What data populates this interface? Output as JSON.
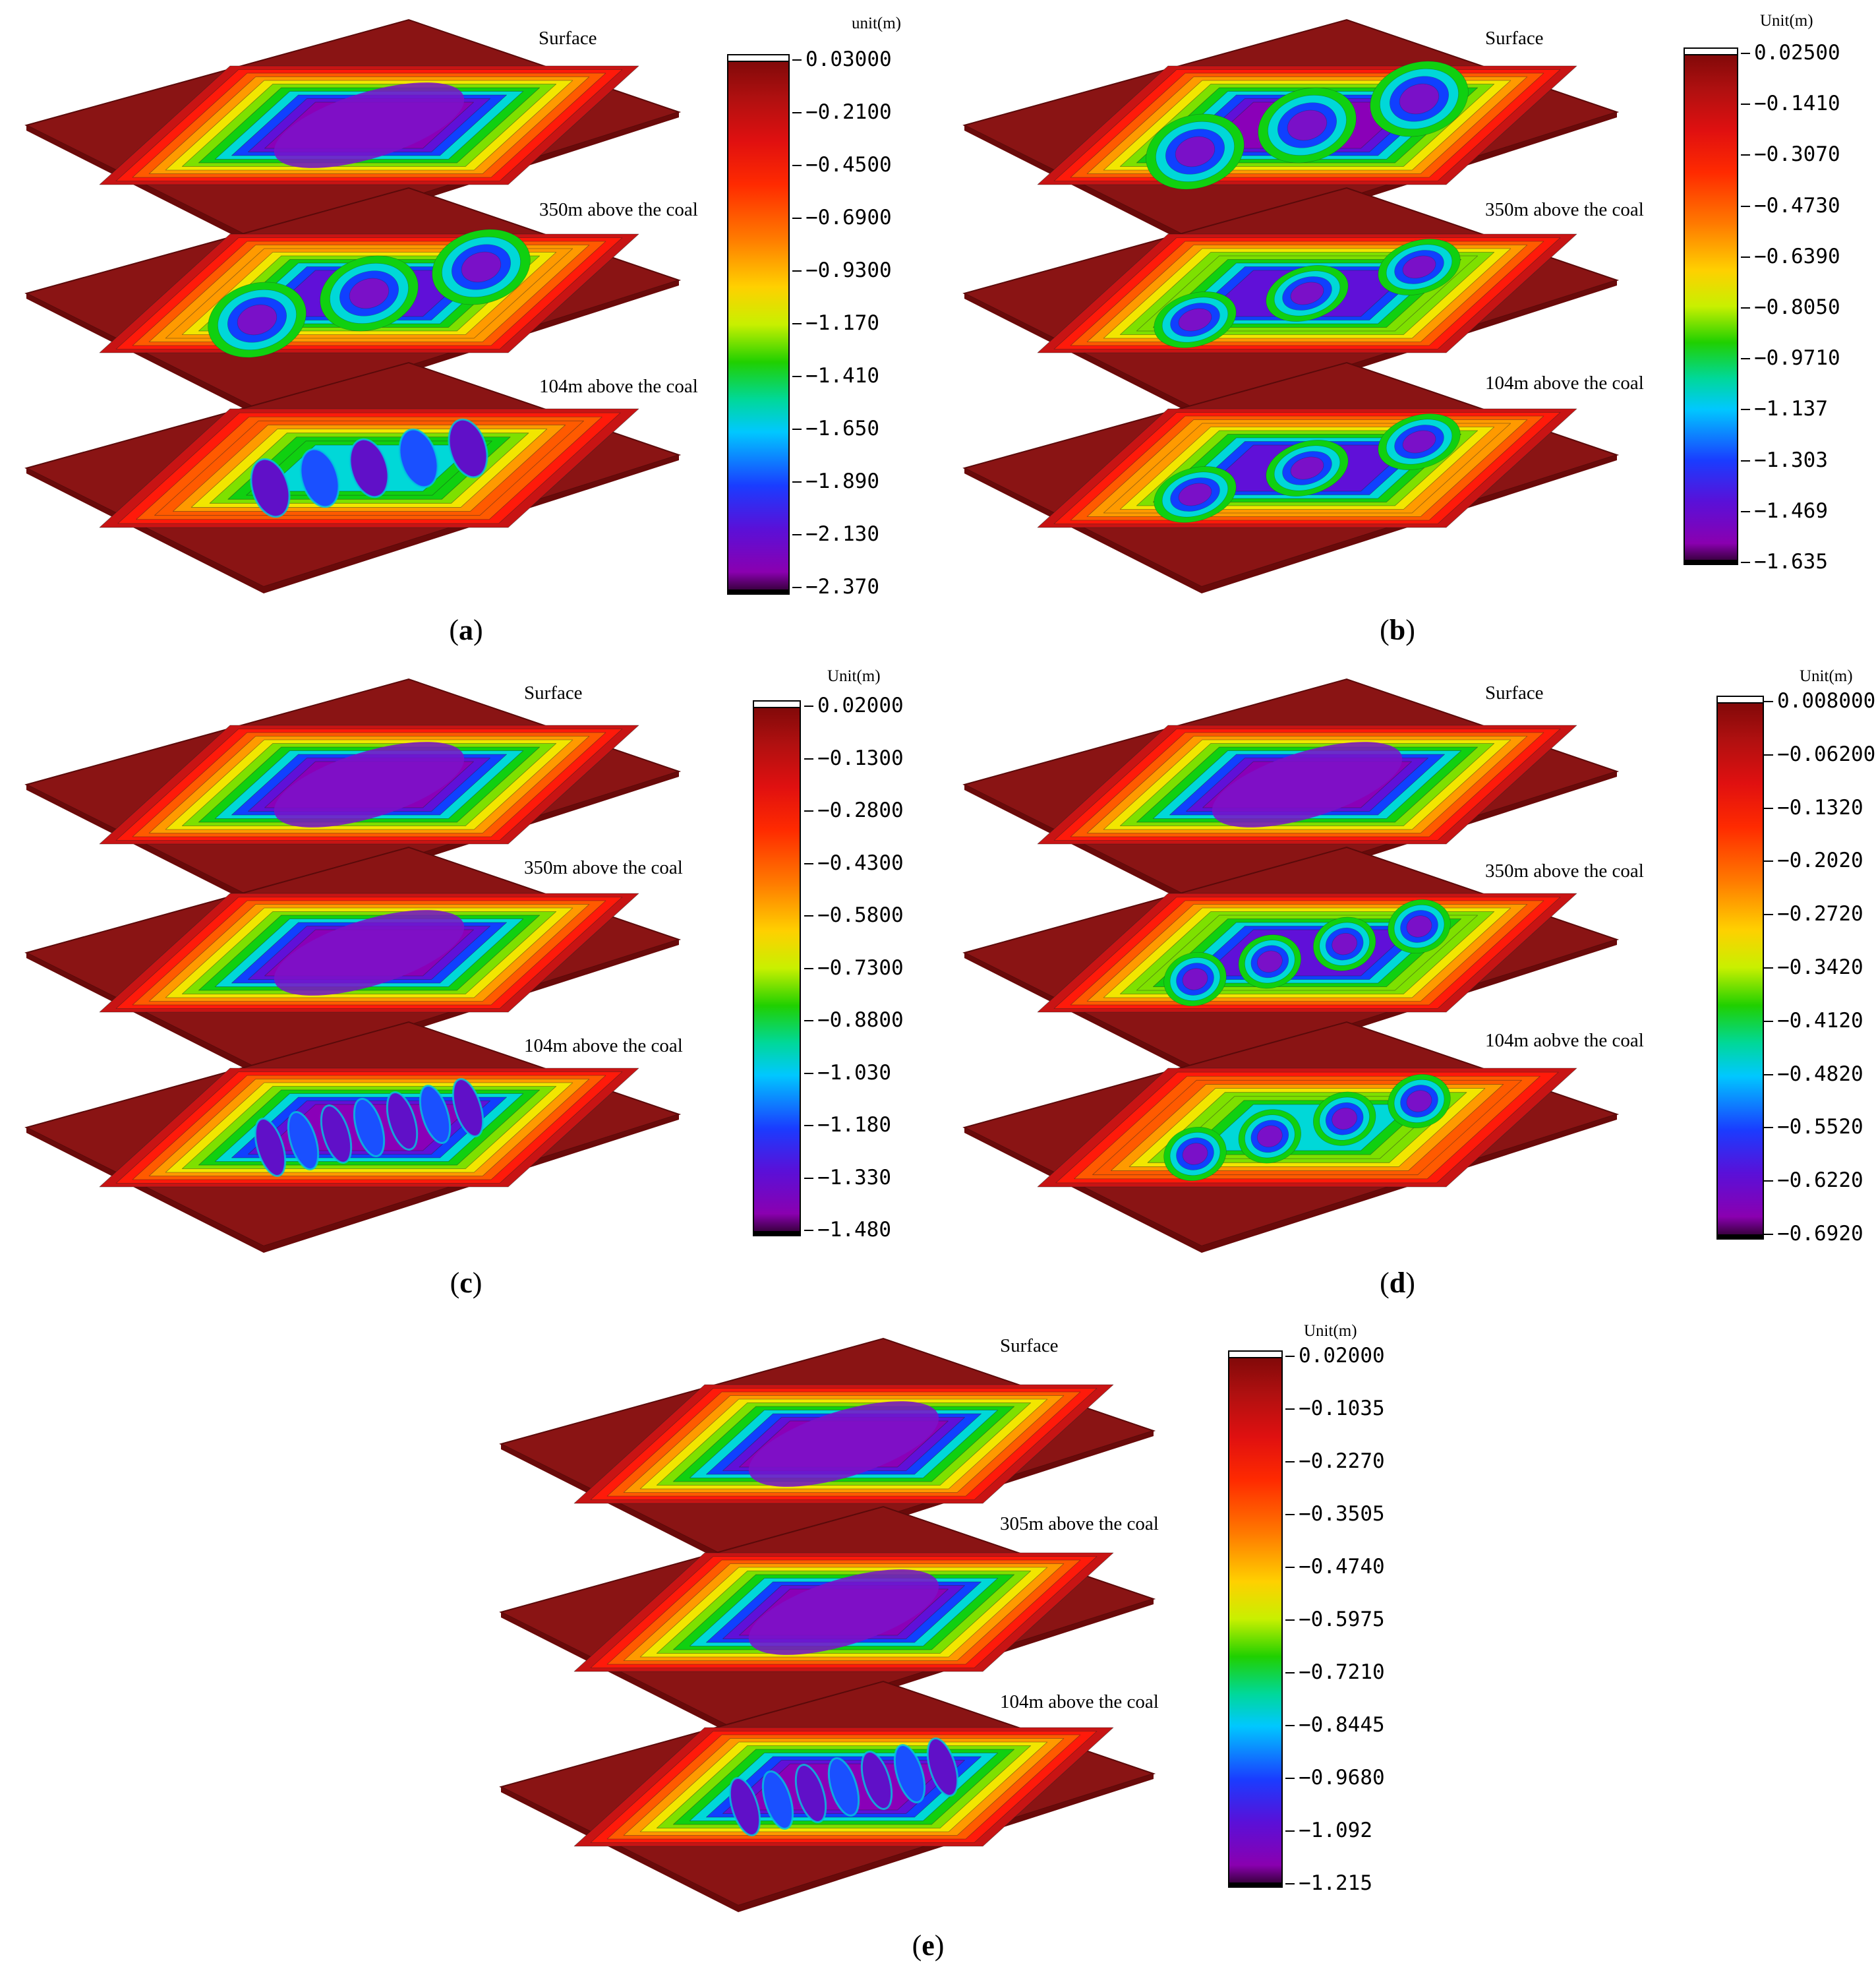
{
  "panels": [
    {
      "id": "a",
      "caption": "a",
      "layers": [
        "Surface",
        "350m above the coal",
        "104m above the coal"
      ],
      "colorbar": {
        "unit": "unit(m)",
        "ticks": [
          "0.03000",
          "-0.2100",
          "-0.4500",
          "-0.6900",
          "-0.9300",
          "-1.170",
          "-1.410",
          "-1.650",
          "-1.890",
          "-2.130",
          "-2.370"
        ]
      },
      "basins": [
        {
          "type": "single",
          "depth": 1.0
        },
        {
          "type": "multi",
          "count": 3,
          "depth": 0.85
        },
        {
          "type": "strips",
          "count": 5,
          "depth": 0.72
        }
      ]
    },
    {
      "id": "b",
      "caption": "b",
      "layers": [
        "Surface",
        "350m above the coal",
        "104m above the coal"
      ],
      "colorbar": {
        "unit": "Unit(m)",
        "ticks": [
          "0.02500",
          "-0.1410",
          "-0.3070",
          "-0.4730",
          "-0.6390",
          "-0.8050",
          "-0.9710",
          "-1.137",
          "-1.303",
          "-1.469",
          "-1.635"
        ]
      },
      "basins": [
        {
          "type": "multi",
          "count": 3,
          "depth": 0.95
        },
        {
          "type": "bands",
          "count": 3,
          "depth": 0.9
        },
        {
          "type": "bands",
          "count": 3,
          "depth": 0.85
        }
      ]
    },
    {
      "id": "c",
      "caption": "c",
      "layers": [
        "Surface",
        "350m above the coal",
        "104m above the coal"
      ],
      "colorbar": {
        "unit": "Unit(m)",
        "ticks": [
          "0.02000",
          "-0.1300",
          "-0.2800",
          "-0.4300",
          "-0.5800",
          "-0.7300",
          "-0.8800",
          "-1.030",
          "-1.180",
          "-1.330",
          "-1.480"
        ]
      },
      "basins": [
        {
          "type": "single",
          "depth": 0.98
        },
        {
          "type": "single",
          "depth": 1.0
        },
        {
          "type": "strips",
          "count": 7,
          "depth": 0.95
        }
      ]
    },
    {
      "id": "d",
      "caption": "d",
      "layers": [
        "Surface",
        "350m above the coal",
        "104m aobve the coal"
      ],
      "colorbar": {
        "unit": "Unit(m)",
        "ticks": [
          "0.008000",
          "-0.06200",
          "-0.1320",
          "-0.2020",
          "-0.2720",
          "-0.3420",
          "-0.4120",
          "-0.4820",
          "-0.5520",
          "-0.6220",
          "-0.6920"
        ]
      },
      "basins": [
        {
          "type": "single",
          "depth": 0.98
        },
        {
          "type": "bands",
          "count": 4,
          "depth": 0.9
        },
        {
          "type": "bands",
          "count": 4,
          "depth": 0.68
        }
      ]
    },
    {
      "id": "e",
      "caption": "e",
      "layers": [
        "Surface",
        "305m above the coal",
        "104m above the coal"
      ],
      "colorbar": {
        "unit": "Unit(m)",
        "ticks": [
          "0.02000",
          "-0.1035",
          "-0.2270",
          "-0.3505",
          "-0.4740",
          "-0.5975",
          "-0.7210",
          "-0.8445",
          "-0.9680",
          "-1.092",
          "-1.215"
        ]
      },
      "basins": [
        {
          "type": "single",
          "depth": 1.0
        },
        {
          "type": "single",
          "depth": 1.0
        },
        {
          "type": "strips",
          "count": 7,
          "depth": 0.95
        }
      ]
    }
  ]
}
